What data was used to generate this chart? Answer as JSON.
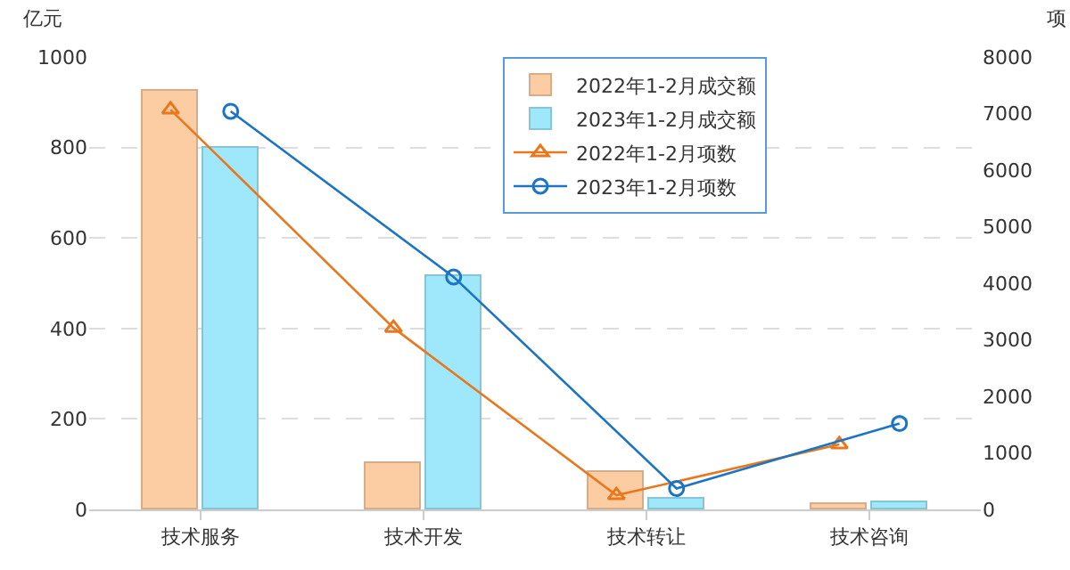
{
  "chart_data": {
    "type": "bar",
    "categories": [
      "技术服务",
      "技术开发",
      "技术转让",
      "技术咨询"
    ],
    "ylabel": "亿元",
    "y2label": "项",
    "ylim": [
      0,
      1000
    ],
    "yticks": [
      0,
      200,
      400,
      600,
      800,
      1000
    ],
    "y2lim": [
      0,
      8000
    ],
    "y2ticks": [
      0,
      1000,
      2000,
      3000,
      4000,
      5000,
      6000,
      7000,
      8000
    ],
    "series": [
      {
        "name": "2022年1-2月成交额",
        "color": "#fccca3",
        "values": [
          926,
          101,
          82,
          10
        ]
      },
      {
        "name": "2023年1-2月成交额",
        "color": "#9fe8fb",
        "values": [
          798,
          514,
          23,
          15
        ]
      },
      {
        "name": "2022年1-2月项数",
        "type": "line",
        "axis": "y2",
        "marker": "triangle",
        "color": "#e8781e",
        "values": [
          7070,
          3210,
          250,
          1150
        ]
      },
      {
        "name": "2023年1-2月项数",
        "type": "line",
        "axis": "y2",
        "marker": "circle",
        "color": "#1c74c4",
        "values": [
          7040,
          4110,
          370,
          1520
        ]
      }
    ],
    "grid": "y",
    "legend": "top right"
  }
}
